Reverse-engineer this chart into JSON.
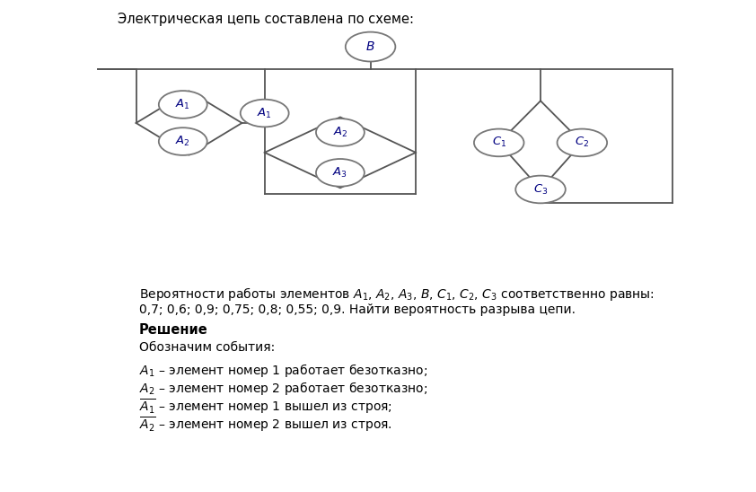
{
  "title": "Электрическая цепь составлена по схеме:",
  "title_fontsize": 10.5,
  "background_color": "#ffffff",
  "line_color": "#555555",
  "node_edge": "#777777",
  "node_fill": "#ffffff",
  "text_color": "#000080",
  "prob_line1": "Вероятности работы элементов $A_1$, $A_2$, $A_3$, $B$, $C_1$, $C_2$, $C_3$ соответственно равны:",
  "prob_line2": "0,7; 0,6; 0,9; 0,75; 0,8; 0,55; 0,9. Найти вероятность разрыва цепи.",
  "solution_bold": "Решение",
  "events_intro": "Обозначим события:",
  "event_lines": [
    "$A_1$ – элемент номер 1 работает безотказно;",
    "$A_2$ – элемент номер 2 работает безотказно;",
    "$\\overline{A_1}$ – элемент номер 1 вышел из строя;",
    "$\\overline{A_2}$ – элемент номер 2 вышел из строя."
  ]
}
